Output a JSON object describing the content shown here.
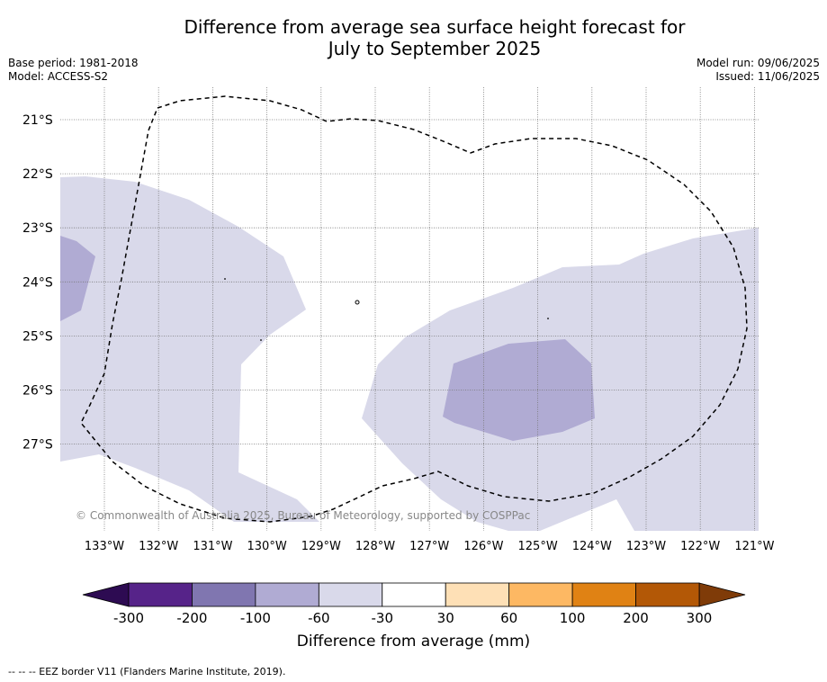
{
  "title_line1": "Difference from average sea surface height forecast for",
  "title_line2": "July to September 2025",
  "base_period": "Base period: 1981-2018",
  "model": "Model: ACCESS-S2",
  "model_run": "Model run: 09/06/2025",
  "issued": "Issued: 11/06/2025",
  "copyright": "© Commonwealth of Australia 2025, Bureau of Meteorology, supported by COSPPac",
  "footnote": "--  --  -- EEZ border V11 (Flanders Marine Institute, 2019).",
  "lat_labels": [
    "21°S",
    "22°S",
    "23°S",
    "24°S",
    "25°S",
    "26°S",
    "27°S"
  ],
  "lon_labels": [
    "133°W",
    "132°W",
    "131°W",
    "130°W",
    "129°W",
    "128°W",
    "127°W",
    "126°W",
    "125°W",
    "124°W",
    "123°W",
    "122°W",
    "121°W"
  ],
  "colorbar": {
    "title": "Difference from average (mm)",
    "ticks": [
      "-300",
      "-200",
      "-100",
      "-60",
      "-30",
      "30",
      "60",
      "100",
      "200",
      "300"
    ],
    "colors": [
      "#562389",
      "#8076b0",
      "#b0abd3",
      "#d9d9ea",
      "#ffffff",
      "#fee0b6",
      "#fdb863",
      "#e08214",
      "#b35806"
    ],
    "low_extend_color": "#2d0b52",
    "high_extend_color": "#7f3b08"
  },
  "anomaly_colors": {
    "light_purple": "#d9d9ea",
    "medium_purple": "#b0abd3"
  }
}
